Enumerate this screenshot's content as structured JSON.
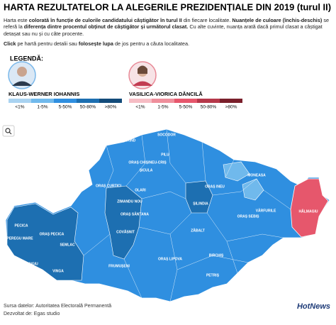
{
  "header": {
    "title": "HARTA REZULTATELOR LA ALEGERILE PREZIDENȚIALE DIN 2019 (turul II)",
    "paragraphs": [
      [
        {
          "text": "Harta este ",
          "bold": false
        },
        {
          "text": "colorată în funcție de culorile candidatului câștigător în turul II",
          "bold": true
        },
        {
          "text": " din fiecare localitate. ",
          "bold": false
        },
        {
          "text": "Nuanțele de culoare (închis-deschis)",
          "bold": true
        },
        {
          "text": " se referă la ",
          "bold": false
        },
        {
          "text": "diferența dintre procentul obținut de câștigător și următorul clasat.",
          "bold": true
        },
        {
          "text": " Cu alte cuvinte, nuanța arată dacă primul clasat a câștigat detașat sau nu și cu câte procente.",
          "bold": false
        }
      ],
      [
        {
          "text": "Click",
          "bold": true
        },
        {
          "text": " pe hartă pentru detalii sau ",
          "bold": false
        },
        {
          "text": "folosește lupa",
          "bold": true
        },
        {
          "text": " de jos pentru a căuta localitatea.",
          "bold": false
        }
      ]
    ]
  },
  "legend": {
    "title": "LEGENDĂ:",
    "candidates": [
      {
        "name": "KLAUS-WERNER IOHANNIS",
        "classes": [
          "<1%",
          "1-5%",
          "5-50%",
          "50-80%",
          ">80%"
        ],
        "colors": [
          "#a9d3f1",
          "#70b9ec",
          "#2f8fe0",
          "#1d6fb1",
          "#134b7a"
        ]
      },
      {
        "name": "VASILICA-VIORICA DĂNCILĂ",
        "classes": [
          "<1%",
          "1-5%",
          "5-50%",
          "50-80%",
          ">80%"
        ],
        "colors": [
          "#f6bcc4",
          "#ef8f9c",
          "#e6576c",
          "#b6384a",
          "#7a1f2b"
        ]
      }
    ]
  },
  "map": {
    "localities": [
      "ZERIND",
      "SOCODOR",
      "PILU",
      "OLARI",
      "ZIMANDU NOU",
      "ORAȘ CURTICI",
      "PECICA",
      "ORAȘ PECICA",
      "PEREGU MARE",
      "SEMLAC",
      "SECUSIGIU",
      "VINGA",
      "FRUMUȘENI",
      "COVĂSNIT",
      "ORAȘ SÂNTANA",
      "ȘILINDIA",
      "ȘICULA",
      "ORAȘ CHIȘINEU-CRIȘ",
      "MONEASA",
      "VÂRFURILE",
      "HĂLMAGIU",
      "ORAȘ LIPOVA",
      "ORAȘ INEU",
      "ORAȘ SEBIȘ",
      "BIRCHIȘ",
      "PETRIȘ",
      "ZĂBALT"
    ]
  },
  "footer": {
    "source": "Sursa datelor: Autoritatea Electorală Permanentă",
    "developer": "Dezvoltat de: Egas studio",
    "logo": "HotNews"
  }
}
